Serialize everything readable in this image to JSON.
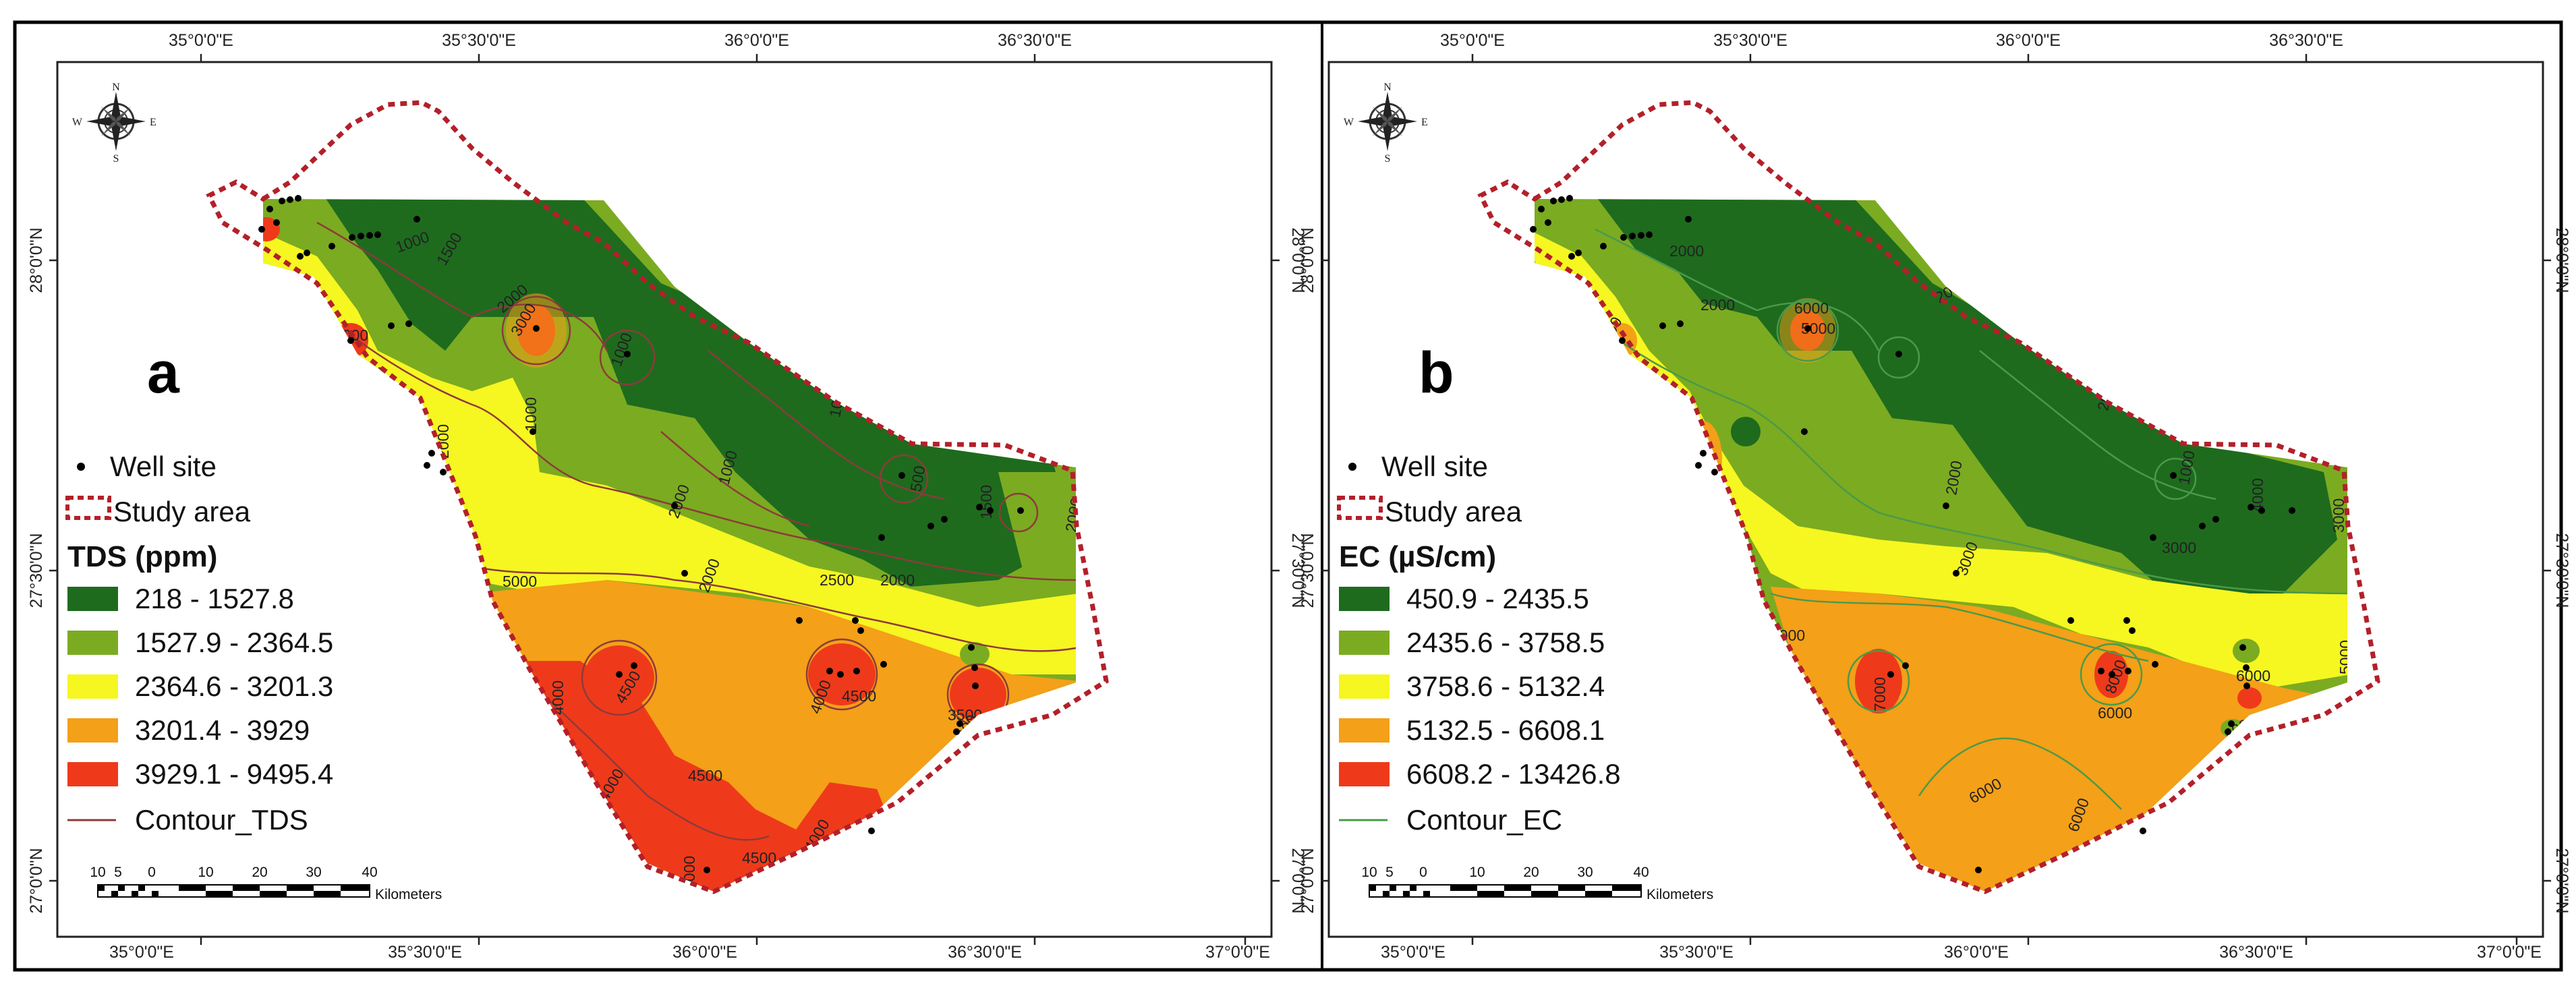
{
  "panels": [
    {
      "letter": "a",
      "legend": {
        "well_site": "Well site",
        "study_area": "Study area",
        "title": "TDS (ppm)",
        "classes": [
          {
            "label": "218 - 1527.8",
            "color": "#1e6b1e"
          },
          {
            "label": "1527.9 - 2364.5",
            "color": "#7bab21"
          },
          {
            "label": "2364.6 - 3201.3",
            "color": "#f6f621"
          },
          {
            "label": "3201.4 - 3929",
            "color": "#f4a018"
          },
          {
            "label": "3929.1 - 9495.4",
            "color": "#ee3a1a"
          }
        ],
        "contour": "Contour_TDS",
        "contour_color": "#8c3b3b"
      },
      "contour_labels": [
        "1000",
        "1500",
        "2000",
        "1000",
        "3000",
        "4000",
        "3000",
        "3500",
        "2000",
        "1000",
        "1000",
        "1000",
        "500",
        "1500",
        "2000",
        "2000",
        "2000",
        "5000",
        "2500",
        "2000",
        "4000",
        "4500",
        "4000",
        "4500",
        "3500",
        "4000",
        "4000",
        "4500",
        "4000",
        "4000",
        "4500"
      ]
    },
    {
      "letter": "b",
      "legend": {
        "well_site": "Well site",
        "study_area": "Study area",
        "title": "EC (µS/cm)",
        "classes": [
          {
            "label": "450.9 - 2435.5",
            "color": "#1e6b1e"
          },
          {
            "label": "2435.6 - 3758.5",
            "color": "#7bab21"
          },
          {
            "label": "3758.6 - 5132.4",
            "color": "#f6f621"
          },
          {
            "label": "5132.5 - 6608.1",
            "color": "#f4a018"
          },
          {
            "label": "6608.2 - 13426.8",
            "color": "#ee3a1a"
          }
        ],
        "contour": "Contour_EC",
        "contour_color": "#4a9a4a"
      },
      "contour_labels": [
        "2000",
        "2000",
        "6000",
        "5000",
        "4000",
        "5000",
        "7000",
        "2000",
        "2000",
        "2000",
        "1000",
        "3000",
        "4000",
        "3000",
        "3000",
        "5000",
        "7000",
        "8000",
        "6000",
        "6000",
        "4000",
        "5000",
        "5000",
        "6000",
        "6000"
      ]
    }
  ],
  "axis": {
    "top_labels": [
      "35°0'0\"E",
      "35°30'0\"E",
      "36°0'0\"E",
      "36°30'0\"E"
    ],
    "bottom_labels": [
      "35°0'0\"E",
      "35°30'0\"E",
      "36°0'0\"E",
      "36°30'0\"E",
      "37°0'0\"E"
    ],
    "left_labels": [
      "28°0'0\"N",
      "27°30'0\"N",
      "27°0'0\"N"
    ],
    "right_labels": [
      "28°0'0\"N",
      "27°30'0\"N",
      "27°0'0\"N"
    ]
  },
  "scale_bar": {
    "ticks": [
      "10",
      "5",
      "0",
      "10",
      "20",
      "30",
      "40"
    ],
    "unit": "Kilometers"
  },
  "north_arrow": {
    "n": "N",
    "s": "S",
    "e": "E",
    "w": "W",
    "icon": "compass-rose-icon"
  }
}
